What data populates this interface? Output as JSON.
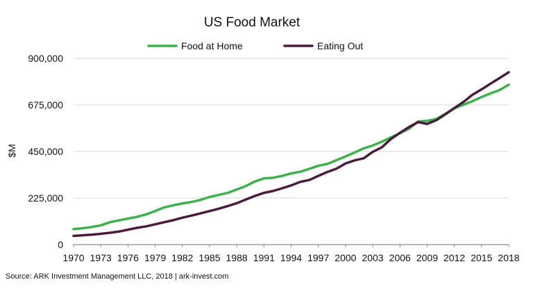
{
  "chart_data": {
    "type": "line",
    "title": "US Food Market",
    "xlabel": "",
    "ylabel": "$M",
    "source": "Source: ARK Investment Management LLC, 2018 | ark-invest.com",
    "legend_position": "top-center",
    "grid": "horizontal",
    "ylim": [
      0,
      900000
    ],
    "xlim": [
      1970,
      2018
    ],
    "x_tick_labels": [
      "1970",
      "1973",
      "1976",
      "1979",
      "1982",
      "1985",
      "1988",
      "1991",
      "1994",
      "1997",
      "2000",
      "2003",
      "2006",
      "2009",
      "2012",
      "2015",
      "2018"
    ],
    "y_tick_labels": [
      "0",
      "225,000",
      "450,000",
      "675,000",
      "900,000"
    ],
    "x": [
      1970,
      1971,
      1972,
      1973,
      1974,
      1975,
      1976,
      1977,
      1978,
      1979,
      1980,
      1981,
      1982,
      1983,
      1984,
      1985,
      1986,
      1987,
      1988,
      1989,
      1990,
      1991,
      1992,
      1993,
      1994,
      1995,
      1996,
      1997,
      1998,
      1999,
      2000,
      2001,
      2002,
      2003,
      2004,
      2005,
      2006,
      2007,
      2008,
      2009,
      2010,
      2011,
      2012,
      2013,
      2014,
      2015,
      2016,
      2017,
      2018
    ],
    "series": [
      {
        "name": "Food at Home",
        "color": "#3cb34a",
        "values": [
          75000,
          79000,
          85000,
          93000,
          108000,
          117000,
          126000,
          134000,
          146000,
          162000,
          180000,
          190000,
          199000,
          206000,
          216000,
          230000,
          240000,
          250000,
          266000,
          283000,
          305000,
          320000,
          323000,
          332000,
          344000,
          352000,
          366000,
          381000,
          390000,
          408000,
          426000,
          445000,
          465000,
          479000,
          497000,
          518000,
          538000,
          560000,
          595000,
          598000,
          607000,
          632000,
          658000,
          676000,
          693000,
          713000,
          731000,
          747000,
          773000
        ]
      },
      {
        "name": "Eating Out",
        "color": "#4a1b3d",
        "values": [
          42000,
          45000,
          48000,
          52000,
          57000,
          63000,
          72000,
          81000,
          88000,
          98000,
          108000,
          118000,
          130000,
          140000,
          151000,
          162000,
          173000,
          186000,
          200000,
          218000,
          235000,
          250000,
          259000,
          272000,
          286000,
          303000,
          312000,
          332000,
          351000,
          367000,
          392000,
          407000,
          417000,
          448000,
          470000,
          510000,
          540000,
          568000,
          592000,
          583000,
          601000,
          629000,
          660000,
          689000,
          724000,
          750000,
          778000,
          805000,
          833000
        ]
      }
    ]
  }
}
